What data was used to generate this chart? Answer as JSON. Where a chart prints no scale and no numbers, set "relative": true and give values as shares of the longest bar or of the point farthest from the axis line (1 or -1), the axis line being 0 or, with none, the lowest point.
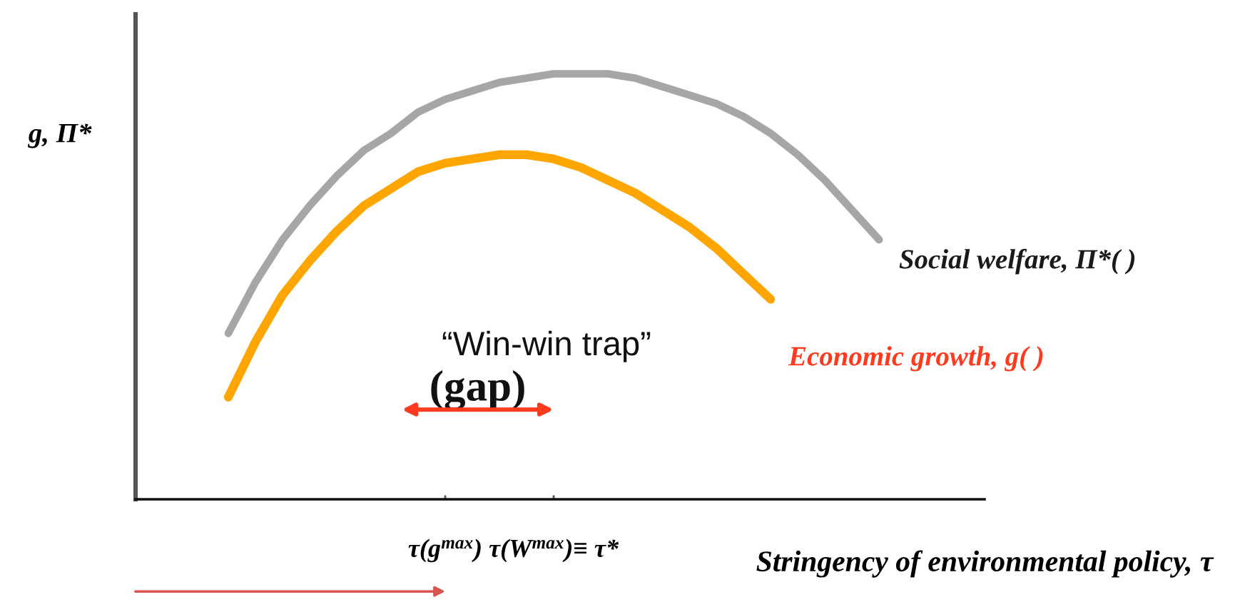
{
  "chart_data": {
    "type": "line",
    "relative": true,
    "xlabel": "Stringency of environmental policy, τ",
    "ylabel": "g, Π*",
    "categories": [
      null,
      null,
      null,
      null,
      null,
      null,
      null,
      null,
      null,
      null,
      null,
      "τ(g$^{max}$)",
      null,
      null,
      null,
      "τ(W$^{max}$)≡ τ*",
      null,
      null,
      null,
      null,
      null,
      null,
      null,
      null,
      null,
      null,
      null,
      null,
      null,
      null,
      null
    ],
    "annotations": [
      "“Win-win trap”",
      "(gap)"
    ],
    "series": [
      {
        "name": "Social welfare, Π*( )",
        "color": "#a6a6a6",
        "values": [
          null,
          null,
          null,
          0.39,
          0.51,
          0.61,
          0.69,
          0.76,
          0.82,
          0.86,
          0.91,
          0.94,
          0.96,
          0.98,
          0.99,
          1,
          1,
          1,
          0.99,
          0.97,
          0.95,
          0.93,
          0.9,
          0.86,
          0.81,
          0.75,
          0.68,
          0.61,
          null,
          null,
          null
        ]
      },
      {
        "name": "Economic growth, g( )",
        "color": "#ffa500",
        "values": [
          null,
          null,
          null,
          0.24,
          0.37,
          0.48,
          0.56,
          0.63,
          0.69,
          0.73,
          0.77,
          0.79,
          0.8,
          0.81,
          0.81,
          0.8,
          0.78,
          0.75,
          0.72,
          0.68,
          0.64,
          0.59,
          0.53,
          0.47,
          null,
          null,
          null,
          null,
          null,
          null,
          null
        ]
      }
    ]
  }
}
